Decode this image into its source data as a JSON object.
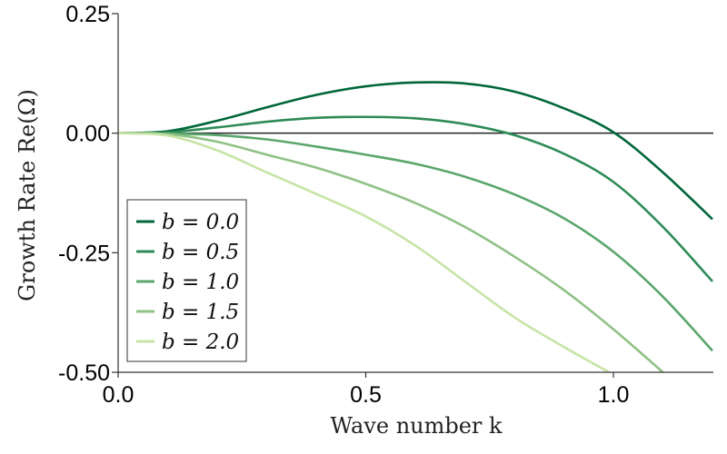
{
  "chart_data": {
    "type": "line",
    "xlabel": "Wave number k",
    "ylabel": "Growth Rate Re(Ω)",
    "xlim": [
      0,
      1.2
    ],
    "ylim": [
      -0.5,
      0.25
    ],
    "x_ticks": [
      "0.0",
      "0.5",
      "1.0"
    ],
    "y_ticks": [
      "0.25",
      "0.00",
      "-0.25",
      "-0.50"
    ],
    "reference_line": {
      "y": 0,
      "color": "#222222"
    },
    "legend_position": "lower-left",
    "x": [
      0,
      0.1,
      0.2,
      0.3,
      0.4,
      0.5,
      0.6,
      0.7,
      0.8,
      0.9,
      1.0,
      1.1,
      1.2
    ],
    "series": [
      {
        "name": "b = 0.0",
        "color": "#00673a",
        "values": [
          0,
          0.004,
          0.026,
          0.054,
          0.08,
          0.098,
          0.106,
          0.104,
          0.087,
          0.052,
          0.002,
          -0.082,
          -0.18
        ]
      },
      {
        "name": "b = 0.5",
        "color": "#2e8b57",
        "values": [
          0,
          0.002,
          0.012,
          0.024,
          0.032,
          0.034,
          0.031,
          0.019,
          -0.004,
          -0.043,
          -0.102,
          -0.196,
          -0.31
        ]
      },
      {
        "name": "b = 1.0",
        "color": "#5aa66b",
        "values": [
          0,
          -0.001,
          -0.004,
          -0.013,
          -0.028,
          -0.045,
          -0.064,
          -0.091,
          -0.128,
          -0.178,
          -0.248,
          -0.342,
          -0.455
        ]
      },
      {
        "name": "b = 1.5",
        "color": "#8fc184",
        "values": [
          0,
          -0.002,
          -0.018,
          -0.045,
          -0.072,
          -0.106,
          -0.146,
          -0.196,
          -0.258,
          -0.328,
          -0.41,
          -0.5,
          null
        ]
      },
      {
        "name": "b = 2.0",
        "color": "#c7e4a6",
        "values": [
          0,
          -0.005,
          -0.036,
          -0.082,
          -0.127,
          -0.174,
          -0.235,
          -0.31,
          -0.385,
          -0.447,
          -0.505,
          null,
          null
        ]
      }
    ]
  }
}
